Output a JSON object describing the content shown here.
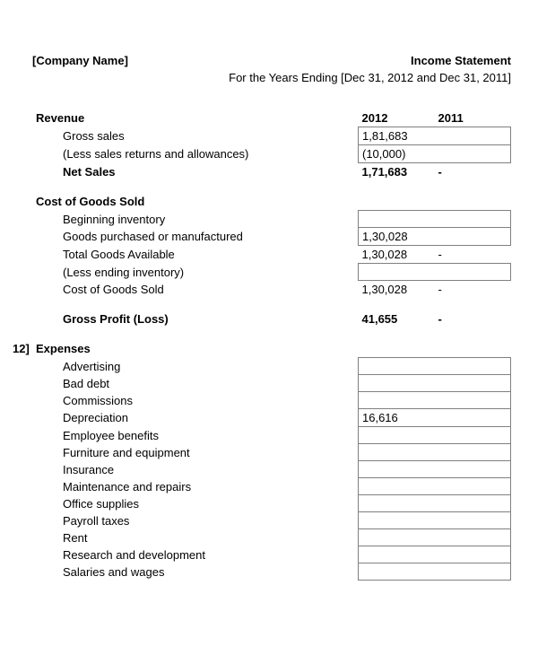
{
  "header": {
    "company": "[Company Name]",
    "title": "Income Statement",
    "subtitle": "For the Years Ending [Dec 31, 2012 and Dec 31, 2011]"
  },
  "columns": {
    "year1": "2012",
    "year2": "2011"
  },
  "revenue": {
    "heading": "Revenue",
    "gross_sales_label": "Gross sales",
    "gross_sales_2012": "1,81,683",
    "gross_sales_2011": "",
    "returns_label": "(Less sales returns and allowances)",
    "returns_2012": "(10,000)",
    "returns_2011": "",
    "net_sales_label": "Net Sales",
    "net_sales_2012": "1,71,683",
    "net_sales_2011": "-"
  },
  "cogs": {
    "heading": "Cost of Goods Sold",
    "beginning_label": "Beginning inventory",
    "beginning_2012": "",
    "beginning_2011": "",
    "purchased_label": "Goods purchased or manufactured",
    "purchased_2012": "1,30,028",
    "purchased_2011": "",
    "total_avail_label": "Total Goods Available",
    "total_avail_2012": "1,30,028",
    "total_avail_2011": "-",
    "less_ending_label": "(Less ending inventory)",
    "less_ending_2012": "",
    "less_ending_2011": "",
    "cogs_label": "Cost of Goods Sold",
    "cogs_2012": "1,30,028",
    "cogs_2011": "-"
  },
  "gross_profit": {
    "label": "Gross Profit (Loss)",
    "v2012": "41,655",
    "v2011": "-"
  },
  "expenses": {
    "prefix": "12]",
    "heading": "Expenses",
    "items": [
      {
        "label": "Advertising",
        "v2012": "",
        "v2011": ""
      },
      {
        "label": "Bad debt",
        "v2012": "",
        "v2011": ""
      },
      {
        "label": "Commissions",
        "v2012": "",
        "v2011": ""
      },
      {
        "label": "Depreciation",
        "v2012": "16,616",
        "v2011": ""
      },
      {
        "label": "Employee benefits",
        "v2012": "",
        "v2011": ""
      },
      {
        "label": "Furniture and equipment",
        "v2012": "",
        "v2011": ""
      },
      {
        "label": "Insurance",
        "v2012": "",
        "v2011": ""
      },
      {
        "label": "Maintenance and repairs",
        "v2012": "",
        "v2011": ""
      },
      {
        "label": "Office supplies",
        "v2012": "",
        "v2011": ""
      },
      {
        "label": "Payroll taxes",
        "v2012": "",
        "v2011": ""
      },
      {
        "label": "Rent",
        "v2012": "",
        "v2011": ""
      },
      {
        "label": "Research and development",
        "v2012": "",
        "v2011": ""
      },
      {
        "label": "Salaries and wages",
        "v2012": "",
        "v2011": ""
      }
    ]
  }
}
